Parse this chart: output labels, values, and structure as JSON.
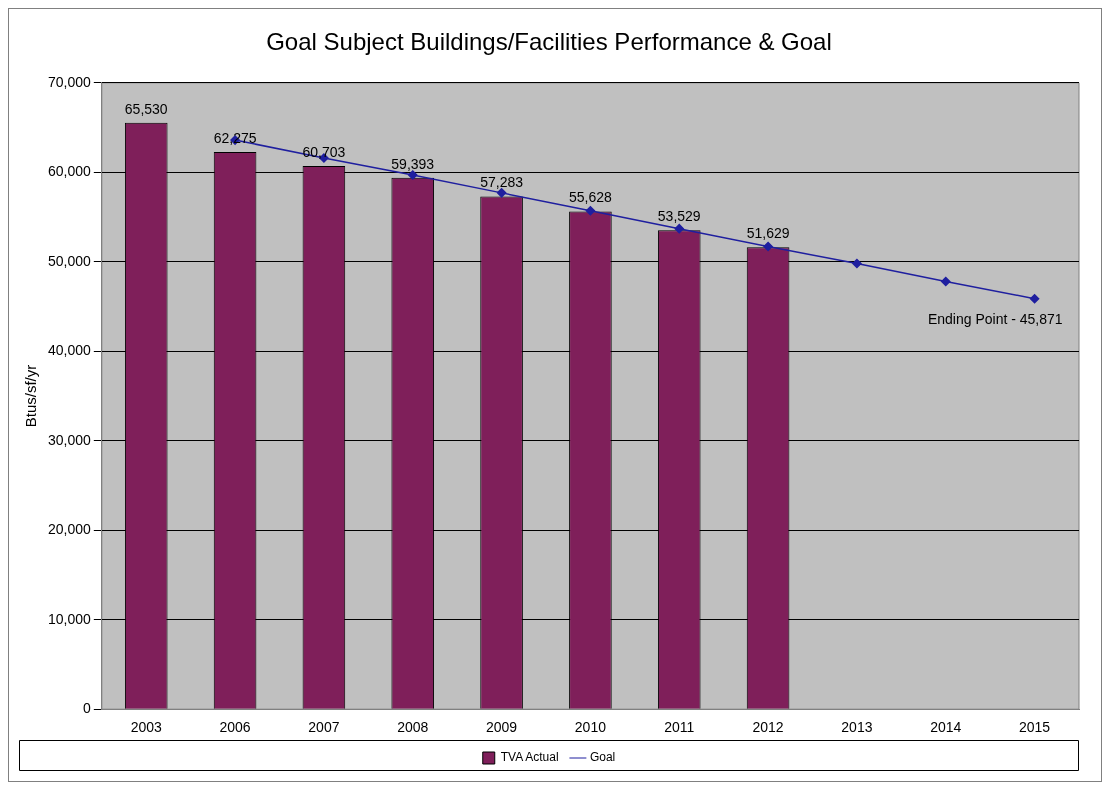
{
  "chart_data": {
    "type": "bar",
    "title": "Goal Subject Buildings/Facilities Performance & Goal",
    "ylabel": "Btus/sf/yr",
    "categories": [
      "2003",
      "2006",
      "2007",
      "2008",
      "2009",
      "2010",
      "2011",
      "2012",
      "2013",
      "2014",
      "2015"
    ],
    "series": [
      {
        "name": "TVA Actual",
        "color": "#7f1f5a",
        "values": [
          65530,
          62275,
          60703,
          59393,
          57283,
          55628,
          53529,
          51629,
          null,
          null,
          null
        ],
        "value_labels": [
          "65,530",
          "62,275",
          "60,703",
          "59,393",
          "57,283",
          "55,628",
          "53,529",
          "51,629",
          null,
          null,
          null
        ]
      },
      {
        "name": "Goal",
        "type": "line",
        "color": "#1f1f9f",
        "marker": "diamond",
        "values": [
          null,
          63600,
          61600,
          59700,
          57700,
          55700,
          53700,
          51700,
          49800,
          47800,
          45871
        ]
      }
    ],
    "ylim": [
      0,
      70000
    ],
    "yticks": [
      0,
      {
        "value": 10000,
        "label": "10,000"
      },
      {
        "value": 20000,
        "label": "20,000"
      },
      {
        "value": 30000,
        "label": "30,000"
      },
      {
        "value": 40000,
        "label": "40,000"
      },
      {
        "value": 50000,
        "label": "50,000"
      },
      {
        "value": 60000,
        "label": "60,000"
      },
      {
        "value": 70000,
        "label": "70,000"
      }
    ],
    "grid": "y",
    "legend": "bottom",
    "annotations": [
      {
        "text": "Ending Point - 45,871",
        "x": "2015",
        "y": 45871
      }
    ]
  }
}
